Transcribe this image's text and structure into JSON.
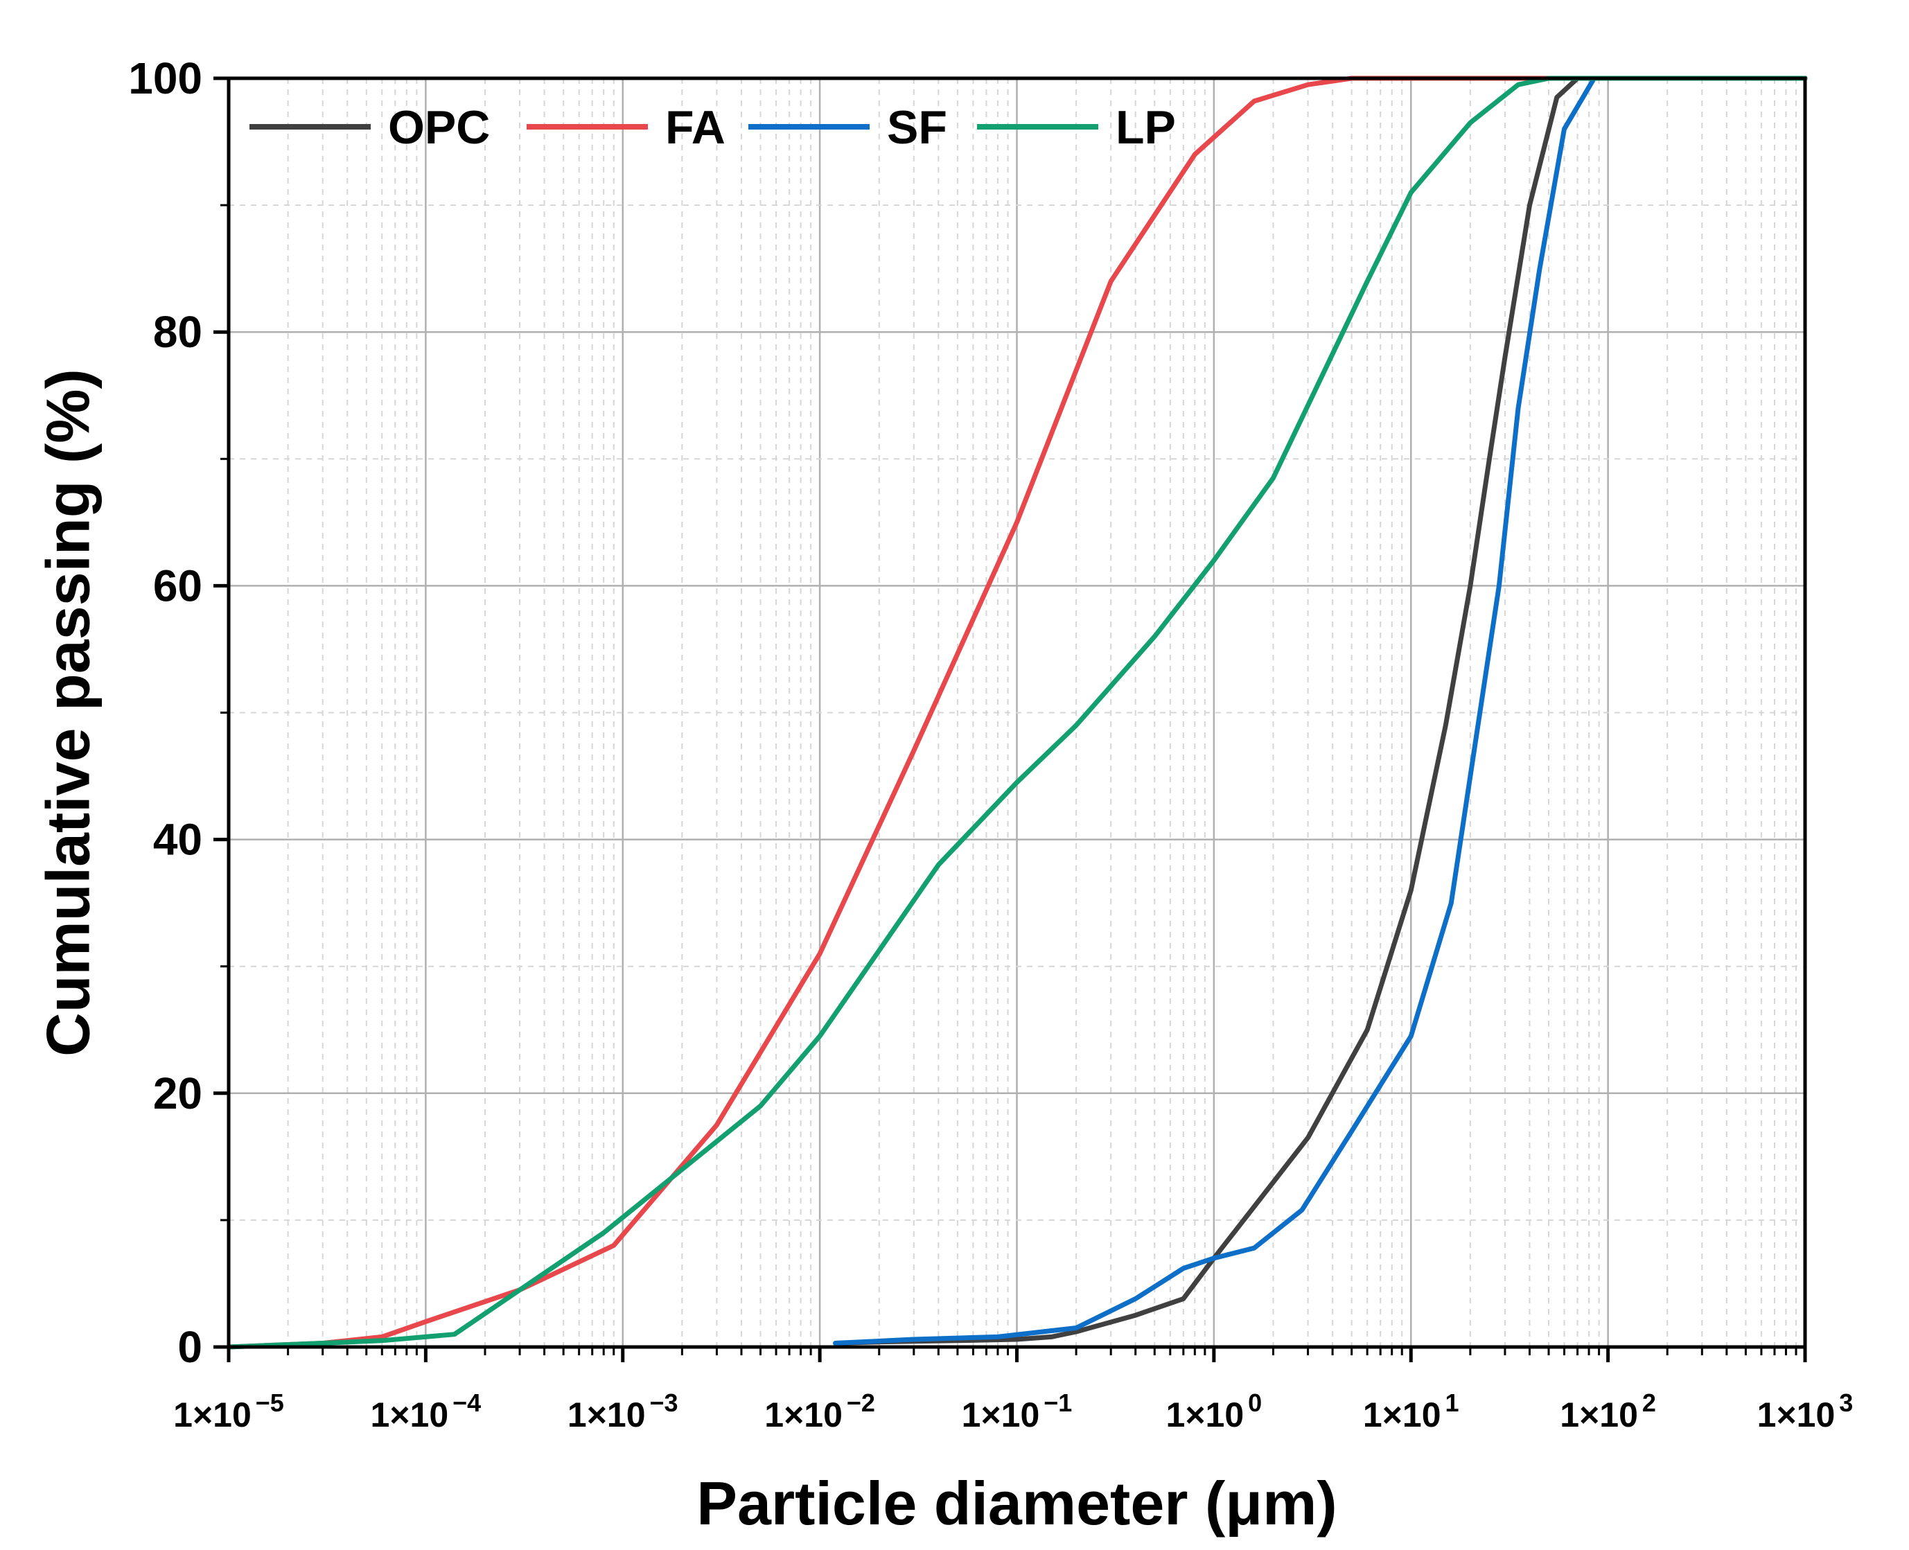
{
  "chart_data": {
    "type": "line",
    "xlabel": "Particle diameter (μm)",
    "ylabel": "Cumulative passing (%)",
    "xscale": "log",
    "xlim": [
      1e-05,
      1000
    ],
    "ylim": [
      0,
      100
    ],
    "grid": true,
    "legend_position": "top-left",
    "x_tick_labels": [
      {
        "mant": "1×10",
        "exp": "−5"
      },
      {
        "mant": "1×10",
        "exp": "−4"
      },
      {
        "mant": "1×10",
        "exp": "−3"
      },
      {
        "mant": "1×10",
        "exp": "−2"
      },
      {
        "mant": "1×10",
        "exp": "−1"
      },
      {
        "mant": "1×10",
        "exp": "0"
      },
      {
        "mant": "1×10",
        "exp": "1"
      },
      {
        "mant": "1×10",
        "exp": "2"
      },
      {
        "mant": "1×10",
        "exp": "3"
      }
    ],
    "y_tick_labels": [
      "0",
      "20",
      "40",
      "60",
      "80",
      "100"
    ],
    "series": [
      {
        "name": "OPC",
        "color": "#404040",
        "points": [
          [
            0.012,
            0.3
          ],
          [
            0.02,
            0.4
          ],
          [
            0.05,
            0.5
          ],
          [
            0.1,
            0.6
          ],
          [
            0.15,
            0.8
          ],
          [
            0.2,
            1.2
          ],
          [
            0.4,
            2.5
          ],
          [
            0.7,
            3.8
          ],
          [
            1.0,
            7.0
          ],
          [
            1.5,
            10.5
          ],
          [
            3.0,
            16.5
          ],
          [
            6.0,
            25.0
          ],
          [
            10,
            36.0
          ],
          [
            15,
            49.0
          ],
          [
            20,
            60.0
          ],
          [
            25,
            70.0
          ],
          [
            30,
            78.0
          ],
          [
            40,
            90.0
          ],
          [
            55,
            98.5
          ],
          [
            70,
            100
          ],
          [
            200,
            100
          ],
          [
            1000,
            100
          ]
        ]
      },
      {
        "name": "FA",
        "color": "#e8474b",
        "points": [
          [
            1e-05,
            0
          ],
          [
            3e-05,
            0.3
          ],
          [
            6e-05,
            0.8
          ],
          [
            0.0001,
            2.0
          ],
          [
            0.0003,
            4.5
          ],
          [
            0.0009,
            8.0
          ],
          [
            0.003,
            17.5
          ],
          [
            0.01,
            31.0
          ],
          [
            0.03,
            47.0
          ],
          [
            0.1,
            65.0
          ],
          [
            0.3,
            84.0
          ],
          [
            0.8,
            94.0
          ],
          [
            1.6,
            98.2
          ],
          [
            3.0,
            99.5
          ],
          [
            5.0,
            100
          ],
          [
            100,
            100
          ],
          [
            1000,
            100
          ]
        ]
      },
      {
        "name": "SF",
        "color": "#0d6fc8",
        "points": [
          [
            0.012,
            0.3
          ],
          [
            0.03,
            0.6
          ],
          [
            0.08,
            0.8
          ],
          [
            0.2,
            1.5
          ],
          [
            0.4,
            3.8
          ],
          [
            0.7,
            6.2
          ],
          [
            1.0,
            7.0
          ],
          [
            1.6,
            7.8
          ],
          [
            2.8,
            10.8
          ],
          [
            5.0,
            17.0
          ],
          [
            10,
            24.5
          ],
          [
            16,
            35.0
          ],
          [
            20,
            45.0
          ],
          [
            28,
            60.0
          ],
          [
            35,
            74.0
          ],
          [
            45,
            85.0
          ],
          [
            60,
            96.0
          ],
          [
            85,
            100
          ],
          [
            300,
            100
          ],
          [
            1000,
            100
          ]
        ]
      },
      {
        "name": "LP",
        "color": "#13a070",
        "points": [
          [
            1e-05,
            0
          ],
          [
            3e-05,
            0.3
          ],
          [
            6e-05,
            0.5
          ],
          [
            0.00014,
            1.0
          ],
          [
            0.0003,
            4.5
          ],
          [
            0.0008,
            9.0
          ],
          [
            0.002,
            14.0
          ],
          [
            0.005,
            19.0
          ],
          [
            0.01,
            24.5
          ],
          [
            0.04,
            38.0
          ],
          [
            0.1,
            44.5
          ],
          [
            0.2,
            49.0
          ],
          [
            0.5,
            56.0
          ],
          [
            1.0,
            62.0
          ],
          [
            2.0,
            68.5
          ],
          [
            6.0,
            84.0
          ],
          [
            10,
            91.0
          ],
          [
            20,
            96.5
          ],
          [
            35,
            99.5
          ],
          [
            50,
            100
          ],
          [
            1000,
            100
          ]
        ]
      }
    ]
  }
}
